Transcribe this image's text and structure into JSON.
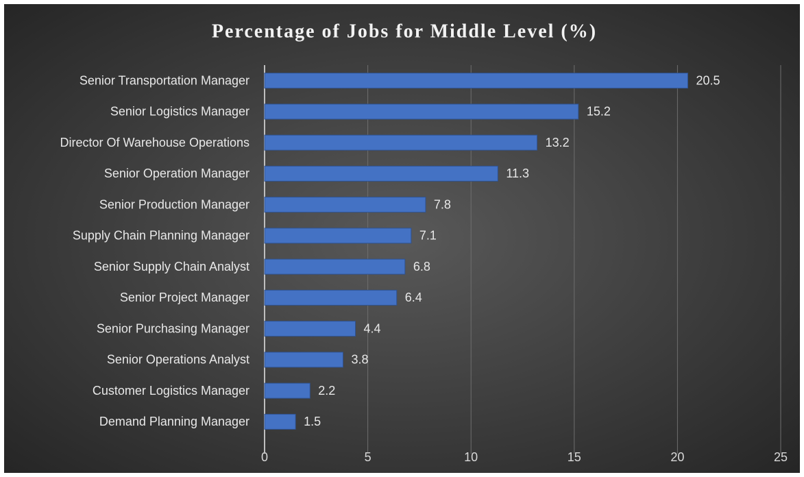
{
  "chart_data": {
    "type": "bar",
    "orientation": "horizontal",
    "title": "Percentage of Jobs for Middle Level (%)",
    "categories": [
      "Senior Transportation Manager",
      "Senior Logistics Manager",
      "Director Of Warehouse Operations",
      "Senior Operation Manager",
      "Senior Production Manager",
      "Supply Chain Planning Manager",
      "Senior Supply Chain Analyst",
      "Senior Project Manager",
      "Senior Purchasing Manager",
      "Senior Operations Analyst",
      "Customer Logistics Manager",
      "Demand Planning Manager"
    ],
    "values": [
      20.5,
      15.2,
      13.2,
      11.3,
      7.8,
      7.1,
      6.8,
      6.4,
      4.4,
      3.8,
      2.2,
      1.5
    ],
    "color": "#4472c4",
    "xlim": [
      0,
      25
    ],
    "xticks": [
      0,
      5,
      10,
      15,
      20,
      25
    ],
    "grid": true
  }
}
